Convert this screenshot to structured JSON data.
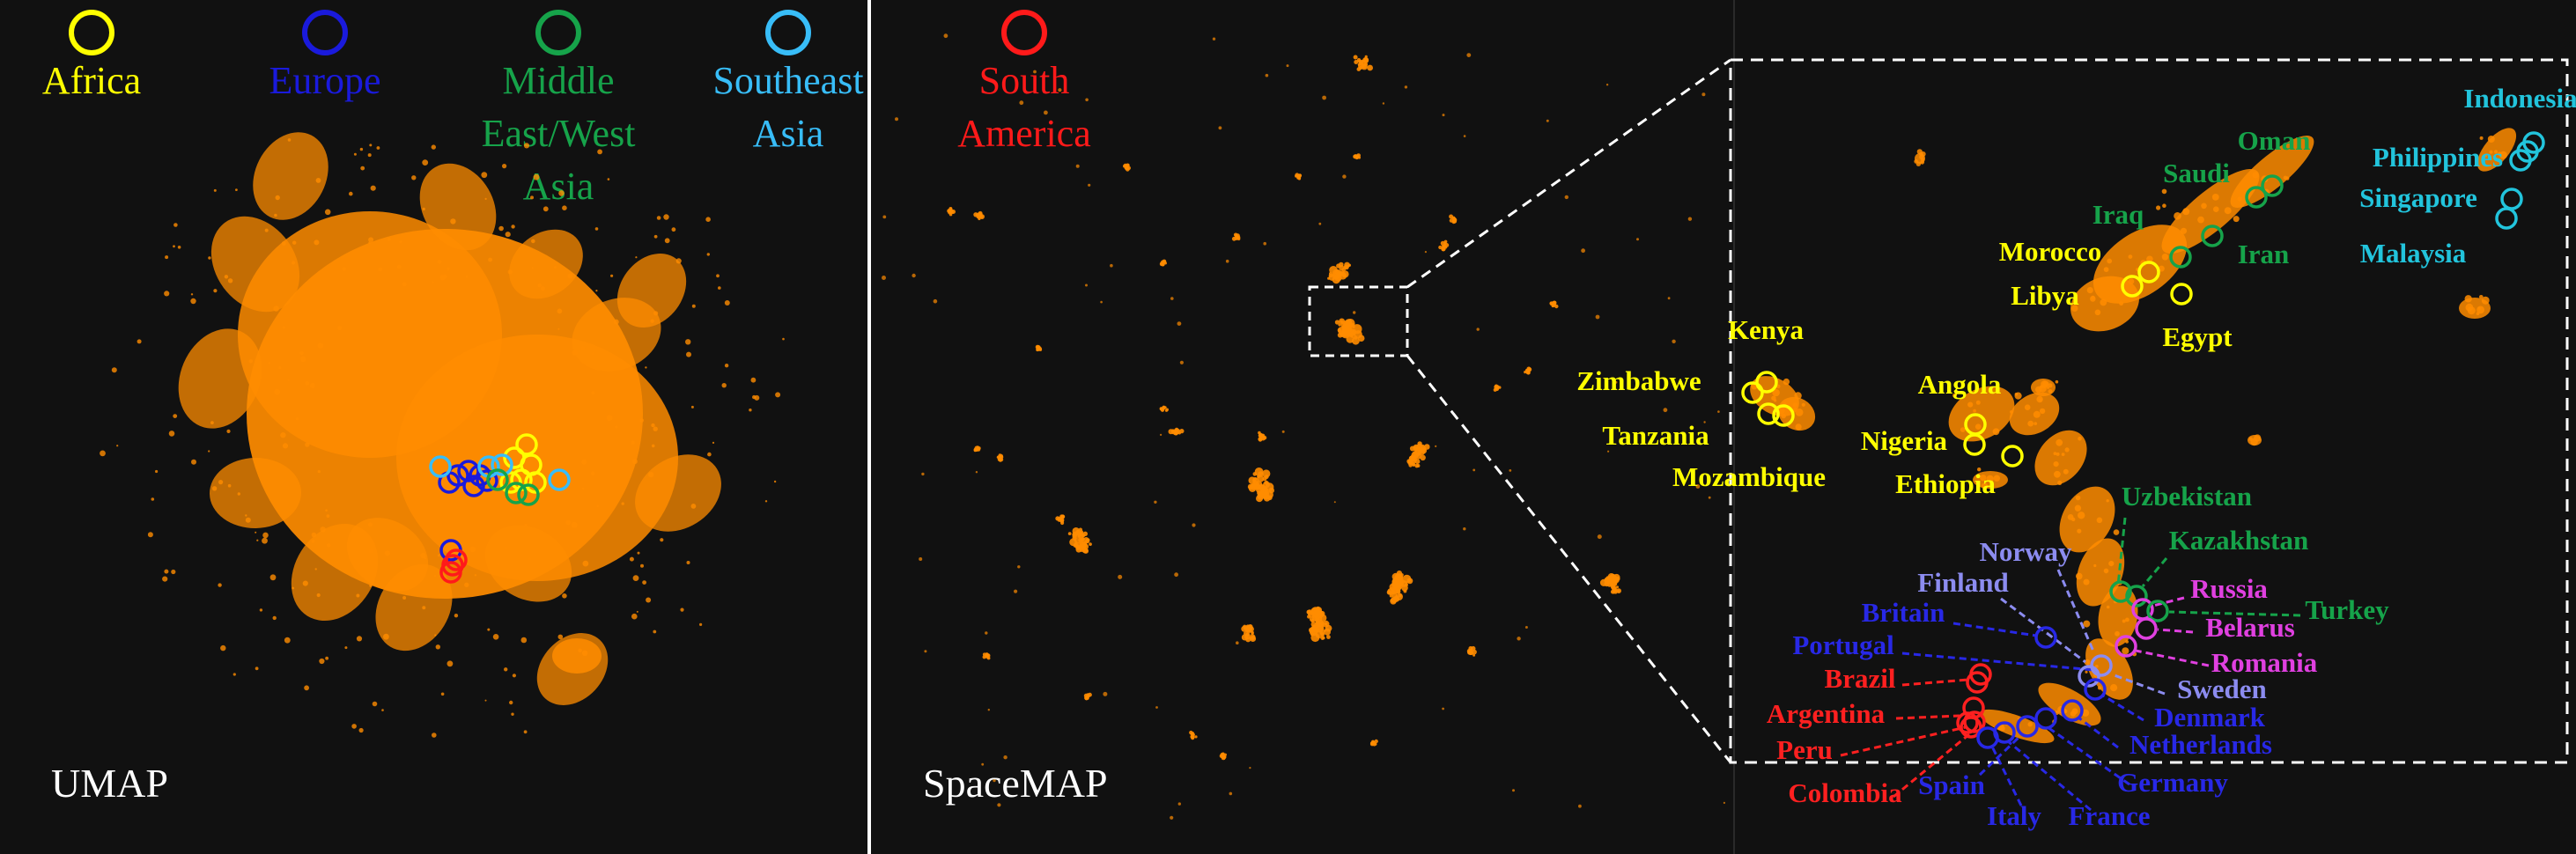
{
  "legend": [
    {
      "label_lines": [
        "Africa"
      ],
      "color": "#ffff00"
    },
    {
      "label_lines": [
        "Europe"
      ],
      "color": "#1a1adc"
    },
    {
      "label_lines": [
        "Middle",
        "East/West",
        "Asia"
      ],
      "color": "#16a34a"
    },
    {
      "label_lines": [
        "Southeast",
        "Asia"
      ],
      "color": "#38bdf8"
    },
    {
      "label_lines": [
        "South",
        "America"
      ],
      "color": "#ff1a1a"
    }
  ],
  "panels": {
    "umap": {
      "title": "UMAP"
    },
    "spacemap": {
      "title": "SpaceMAP"
    }
  },
  "colors": {
    "background": "#111111",
    "points": "#ff8c00",
    "middle_east": "#16a34a",
    "se_asia": "#22c4dc",
    "north_europe": "#8c8cf0",
    "east_europe": "#e040e0",
    "west_europe": "#2828e6"
  },
  "chart_data": {
    "type": "scatter",
    "description_groups": [
      "Africa",
      "Europe",
      "Middle East/West Asia",
      "Southeast Asia",
      "South America"
    ],
    "countries": [
      {
        "name": "Indonesia",
        "group": "Southeast Asia"
      },
      {
        "name": "Philippines",
        "group": "Southeast Asia"
      },
      {
        "name": "Singapore",
        "group": "Southeast Asia"
      },
      {
        "name": "Malaysia",
        "group": "Southeast Asia"
      },
      {
        "name": "Oman",
        "group": "Middle East/West Asia"
      },
      {
        "name": "Saudi",
        "group": "Middle East/West Asia"
      },
      {
        "name": "Iraq",
        "group": "Middle East/West Asia"
      },
      {
        "name": "Iran",
        "group": "Middle East/West Asia"
      },
      {
        "name": "Morocco",
        "group": "Africa"
      },
      {
        "name": "Libya",
        "group": "Africa"
      },
      {
        "name": "Egypt",
        "group": "Africa"
      },
      {
        "name": "Kenya",
        "group": "Africa"
      },
      {
        "name": "Zimbabwe",
        "group": "Africa"
      },
      {
        "name": "Tanzania",
        "group": "Africa"
      },
      {
        "name": "Mozambique",
        "group": "Africa"
      },
      {
        "name": "Angola",
        "group": "Africa"
      },
      {
        "name": "Nigeria",
        "group": "Africa"
      },
      {
        "name": "Ethiopia",
        "group": "Africa"
      },
      {
        "name": "Uzbekistan",
        "group": "Middle East/West Asia"
      },
      {
        "name": "Kazakhstan",
        "group": "Middle East/West Asia"
      },
      {
        "name": "Norway",
        "group": "Europe"
      },
      {
        "name": "Finland",
        "group": "Europe"
      },
      {
        "name": "Russia",
        "group": "Europe"
      },
      {
        "name": "Turkey",
        "group": "Middle East/West Asia"
      },
      {
        "name": "Britain",
        "group": "Europe"
      },
      {
        "name": "Belarus",
        "group": "Europe"
      },
      {
        "name": "Portugal",
        "group": "Europe"
      },
      {
        "name": "Romania",
        "group": "Europe"
      },
      {
        "name": "Brazil",
        "group": "South America"
      },
      {
        "name": "Sweden",
        "group": "Europe"
      },
      {
        "name": "Argentina",
        "group": "South America"
      },
      {
        "name": "Denmark",
        "group": "Europe"
      },
      {
        "name": "Netherlands",
        "group": "Europe"
      },
      {
        "name": "Peru",
        "group": "South America"
      },
      {
        "name": "Germany",
        "group": "Europe"
      },
      {
        "name": "Colombia",
        "group": "South America"
      },
      {
        "name": "Spain",
        "group": "Europe"
      },
      {
        "name": "France",
        "group": "Europe"
      },
      {
        "name": "Italy",
        "group": "Europe"
      }
    ]
  }
}
